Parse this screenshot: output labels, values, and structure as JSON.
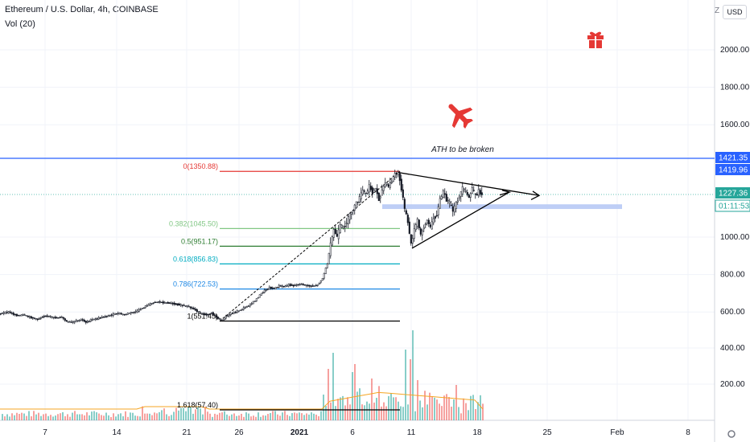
{
  "header": {
    "title": "Ethereum / U.S. Dollar, 4h, COINBASE",
    "vol_label": "Vol (20)"
  },
  "scale": {
    "currency": "USD",
    "z_label": "Z"
  },
  "annotation": {
    "text": "ATH to be broken"
  },
  "icons": {
    "gift": "gift-icon",
    "plane": "airplane-icon"
  },
  "colors": {
    "blue_line": "#2962ff",
    "red_level": "#e53935",
    "up_candle": "#26a69a",
    "down_candle": "#ef5350",
    "vol_ma": "#f5a623",
    "icon_red": "#e53935"
  },
  "chart_data": {
    "type": "candlestick",
    "title": "Ethereum / U.S. Dollar, 4h, COINBASE",
    "y_ticks": [
      "2000.00",
      "1800.00",
      "1600.00",
      "1000.00",
      "800.00",
      "600.00",
      "400.00",
      "200.00"
    ],
    "y_tick_values": [
      2000,
      1800,
      1600,
      1000,
      800,
      600,
      400,
      200
    ],
    "x_ticks": [
      "7",
      "14",
      "21",
      "26",
      "2021",
      "6",
      "11",
      "18",
      "25",
      "Feb",
      "8"
    ],
    "price_badges": [
      {
        "label": "1421.35",
        "value": 1421.35,
        "style": "blue"
      },
      {
        "label": "1419.96",
        "value": 1419.96,
        "style": "blue"
      },
      {
        "label": "1227.36",
        "value": 1227.36,
        "style": "green"
      },
      {
        "label": "01:11:53",
        "value": 1160,
        "style": "green-outline"
      }
    ],
    "horizontal_lines": [
      {
        "value": 1421.35,
        "color": "#2962ff"
      },
      {
        "value": 1419.96,
        "color": "#2962ff"
      }
    ],
    "fib_levels": [
      {
        "label": "0(1350.88)",
        "value": 1350.88,
        "color": "#e53935"
      },
      {
        "label": "0.382(1045.50)",
        "value": 1045.5,
        "color": "#81c784"
      },
      {
        "label": "0.5(951.17)",
        "value": 951.17,
        "color": "#2e7d32"
      },
      {
        "label": "0.618(856.83)",
        "value": 856.83,
        "color": "#00acc1"
      },
      {
        "label": "0.786(722.53)",
        "value": 722.53,
        "color": "#1e88e5"
      },
      {
        "label": "1(551.45)",
        "value": 551.45,
        "color": "#000000"
      },
      {
        "label": "1.618(57.40)",
        "value": 57.4,
        "color": "#000000"
      }
    ],
    "support_zone": [
      1150,
      1175
    ],
    "triangle": {
      "top_start": 1395,
      "top_end": 1240,
      "bottom_start": 920,
      "apex": 1240
    },
    "price_path": [
      {
        "t": 0,
        "p": 590
      },
      {
        "t": 6,
        "p": 595
      },
      {
        "t": 12,
        "p": 600
      },
      {
        "t": 18,
        "p": 588
      },
      {
        "t": 24,
        "p": 580
      },
      {
        "t": 30,
        "p": 585
      },
      {
        "t": 36,
        "p": 575
      },
      {
        "t": 42,
        "p": 568
      },
      {
        "t": 48,
        "p": 560
      },
      {
        "t": 54,
        "p": 575
      },
      {
        "t": 60,
        "p": 580
      },
      {
        "t": 66,
        "p": 572
      },
      {
        "t": 72,
        "p": 568
      },
      {
        "t": 78,
        "p": 572
      },
      {
        "t": 84,
        "p": 548
      },
      {
        "t": 90,
        "p": 545
      },
      {
        "t": 96,
        "p": 552
      },
      {
        "t": 102,
        "p": 560
      },
      {
        "t": 108,
        "p": 545
      },
      {
        "t": 114,
        "p": 558
      },
      {
        "t": 120,
        "p": 562
      },
      {
        "t": 126,
        "p": 570
      },
      {
        "t": 132,
        "p": 575
      },
      {
        "t": 138,
        "p": 582
      },
      {
        "t": 144,
        "p": 590
      },
      {
        "t": 150,
        "p": 592
      },
      {
        "t": 156,
        "p": 585
      },
      {
        "t": 162,
        "p": 595
      },
      {
        "t": 168,
        "p": 600
      },
      {
        "t": 174,
        "p": 610
      },
      {
        "t": 180,
        "p": 625
      },
      {
        "t": 186,
        "p": 640
      },
      {
        "t": 192,
        "p": 650
      },
      {
        "t": 198,
        "p": 655
      },
      {
        "t": 204,
        "p": 650
      },
      {
        "t": 210,
        "p": 648
      },
      {
        "t": 216,
        "p": 645
      },
      {
        "t": 222,
        "p": 640
      },
      {
        "t": 228,
        "p": 635
      },
      {
        "t": 234,
        "p": 630
      },
      {
        "t": 240,
        "p": 620
      },
      {
        "t": 246,
        "p": 605
      },
      {
        "t": 252,
        "p": 590
      },
      {
        "t": 258,
        "p": 585
      },
      {
        "t": 264,
        "p": 595
      },
      {
        "t": 270,
        "p": 572
      },
      {
        "t": 276,
        "p": 555
      },
      {
        "t": 282,
        "p": 575
      },
      {
        "t": 288,
        "p": 590
      },
      {
        "t": 294,
        "p": 600
      },
      {
        "t": 300,
        "p": 612
      },
      {
        "t": 306,
        "p": 625
      },
      {
        "t": 312,
        "p": 640
      },
      {
        "t": 318,
        "p": 660
      },
      {
        "t": 324,
        "p": 690
      },
      {
        "t": 330,
        "p": 715
      },
      {
        "t": 336,
        "p": 730
      },
      {
        "t": 342,
        "p": 725
      },
      {
        "t": 348,
        "p": 740
      },
      {
        "t": 354,
        "p": 735
      },
      {
        "t": 360,
        "p": 745
      },
      {
        "t": 366,
        "p": 740
      },
      {
        "t": 372,
        "p": 748
      },
      {
        "t": 378,
        "p": 745
      },
      {
        "t": 384,
        "p": 740
      },
      {
        "t": 390,
        "p": 738
      },
      {
        "t": 396,
        "p": 745
      },
      {
        "t": 402,
        "p": 780
      },
      {
        "t": 408,
        "p": 860
      },
      {
        "t": 412,
        "p": 960
      },
      {
        "t": 416,
        "p": 1040
      },
      {
        "t": 420,
        "p": 1000
      },
      {
        "t": 424,
        "p": 1060
      },
      {
        "t": 428,
        "p": 1050
      },
      {
        "t": 432,
        "p": 1080
      },
      {
        "t": 436,
        "p": 1120
      },
      {
        "t": 440,
        "p": 1150
      },
      {
        "t": 444,
        "p": 1180
      },
      {
        "t": 448,
        "p": 1210
      },
      {
        "t": 452,
        "p": 1250
      },
      {
        "t": 456,
        "p": 1230
      },
      {
        "t": 460,
        "p": 1270
      },
      {
        "t": 464,
        "p": 1240
      },
      {
        "t": 468,
        "p": 1260
      },
      {
        "t": 472,
        "p": 1200
      },
      {
        "t": 476,
        "p": 1250
      },
      {
        "t": 480,
        "p": 1290
      },
      {
        "t": 484,
        "p": 1270
      },
      {
        "t": 488,
        "p": 1300
      },
      {
        "t": 492,
        "p": 1340
      },
      {
        "t": 496,
        "p": 1340
      },
      {
        "t": 500,
        "p": 1260
      },
      {
        "t": 504,
        "p": 1150
      },
      {
        "t": 508,
        "p": 1080
      },
      {
        "t": 512,
        "p": 960
      },
      {
        "t": 516,
        "p": 1040
      },
      {
        "t": 520,
        "p": 1090
      },
      {
        "t": 524,
        "p": 1010
      },
      {
        "t": 528,
        "p": 1060
      },
      {
        "t": 532,
        "p": 1090
      },
      {
        "t": 536,
        "p": 1050
      },
      {
        "t": 540,
        "p": 1100
      },
      {
        "t": 544,
        "p": 1120
      },
      {
        "t": 548,
        "p": 1200
      },
      {
        "t": 552,
        "p": 1240
      },
      {
        "t": 556,
        "p": 1200
      },
      {
        "t": 560,
        "p": 1180
      },
      {
        "t": 564,
        "p": 1140
      },
      {
        "t": 568,
        "p": 1180
      },
      {
        "t": 572,
        "p": 1220
      },
      {
        "t": 576,
        "p": 1260
      },
      {
        "t": 580,
        "p": 1240
      },
      {
        "t": 584,
        "p": 1210
      },
      {
        "t": 588,
        "p": 1260
      },
      {
        "t": 592,
        "p": 1220
      },
      {
        "t": 596,
        "p": 1245
      },
      {
        "t": 600,
        "p": 1227
      }
    ],
    "volume_peaks": [
      {
        "t": 412,
        "v": 420
      },
      {
        "t": 408,
        "v": 320
      },
      {
        "t": 436,
        "v": 300
      },
      {
        "t": 440,
        "v": 350
      },
      {
        "t": 504,
        "v": 440
      },
      {
        "t": 508,
        "v": 380
      },
      {
        "t": 512,
        "v": 560
      },
      {
        "t": 518,
        "v": 250
      },
      {
        "t": 566,
        "v": 220
      },
      {
        "t": 460,
        "v": 260
      }
    ]
  }
}
